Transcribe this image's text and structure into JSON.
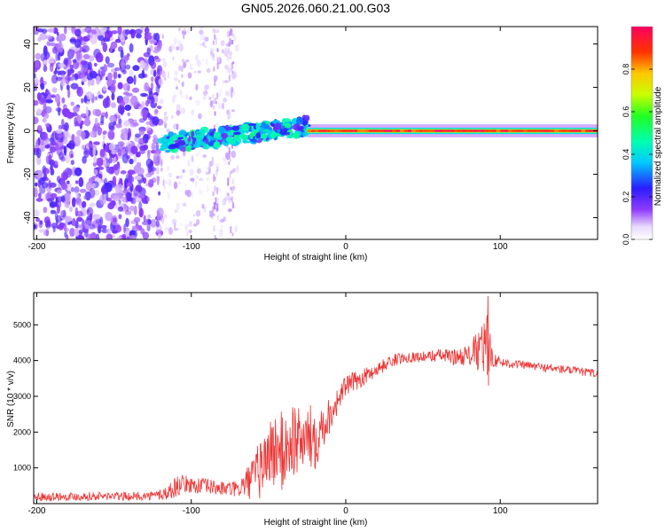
{
  "title": "GN05.2026.060.21.00.G03",
  "colors": {
    "snr_line": "#ee3333",
    "axis": "#000000"
  },
  "chart_data": [
    {
      "type": "heatmap",
      "name": "spectrogram",
      "xlabel": "Height of straight line (km)",
      "ylabel": "Frequency (Hz)",
      "xlim": [
        -202,
        163
      ],
      "ylim": [
        -50,
        48
      ],
      "xticks": [
        -200,
        -100,
        0,
        100
      ],
      "yticks": [
        -40,
        -20,
        0,
        20,
        40
      ],
      "colorbar": {
        "label": "Normalized spectral amplitude",
        "range": [
          0,
          1
        ],
        "ticks": [
          "0.0",
          "0.2",
          "0.4",
          "0.6",
          "0.8"
        ],
        "tick_values": [
          0.0,
          0.2,
          0.4,
          0.6,
          0.8
        ]
      },
      "features": [
        {
          "segment": "noise",
          "x_range": [
            -202,
            -120
          ],
          "freq_range": [
            -50,
            48
          ],
          "amplitude": "0.05-0.2"
        },
        {
          "segment": "sparse_streaks",
          "x_range": [
            -120,
            -70
          ],
          "freq_range": [
            -50,
            48
          ],
          "amplitude": "0.02-0.1"
        },
        {
          "segment": "emerging_tone",
          "x_range": [
            -120,
            -25
          ],
          "freq_start": -6,
          "freq_end": 2,
          "amplitude": "0.2-0.5"
        },
        {
          "segment": "stable_tone",
          "x_range": [
            -25,
            163
          ],
          "freq": 0,
          "amplitude": "0.8-1.0"
        }
      ]
    },
    {
      "type": "line",
      "name": "snr",
      "xlabel": "Height of straight line (km)",
      "ylabel": "SNR (10 * v/v)",
      "xlim": [
        -202,
        163
      ],
      "ylim": [
        0,
        5900
      ],
      "xticks": [
        -200,
        -100,
        0,
        100
      ],
      "yticks": [
        1000,
        2000,
        3000,
        4000,
        5000
      ],
      "series": [
        {
          "name": "SNR",
          "x": [
            -202,
            -180,
            -160,
            -140,
            -125,
            -115,
            -110,
            -105,
            -100,
            -95,
            -90,
            -80,
            -70,
            -60,
            -55,
            -50,
            -45,
            -40,
            -35,
            -30,
            -25,
            -20,
            -15,
            -10,
            -5,
            0,
            10,
            20,
            30,
            40,
            50,
            60,
            70,
            80,
            85,
            88,
            92,
            95,
            100,
            110,
            120,
            130,
            140,
            150,
            160,
            163
          ],
          "values": [
            200,
            200,
            210,
            200,
            220,
            300,
            480,
            560,
            520,
            500,
            480,
            420,
            400,
            700,
            1000,
            1400,
            1500,
            1400,
            1800,
            1750,
            1800,
            1900,
            2200,
            2500,
            2900,
            3300,
            3500,
            3750,
            4000,
            4100,
            4100,
            4150,
            4100,
            4150,
            4250,
            4300,
            4450,
            4050,
            3950,
            3900,
            3850,
            3800,
            3750,
            3700,
            3650,
            3600
          ],
          "noise_amplitude": [
            120,
            120,
            120,
            120,
            120,
            250,
            300,
            250,
            220,
            250,
            230,
            200,
            230,
            600,
            900,
            1000,
            1100,
            1200,
            1200,
            900,
            900,
            1000,
            700,
            500,
            350,
            300,
            250,
            200,
            180,
            150,
            150,
            180,
            220,
            300,
            600,
            800,
            900,
            220,
            150,
            120,
            120,
            120,
            120,
            120,
            120,
            120
          ]
        }
      ],
      "annotations": [
        {
          "x": 92,
          "peak": 5800
        }
      ]
    }
  ]
}
